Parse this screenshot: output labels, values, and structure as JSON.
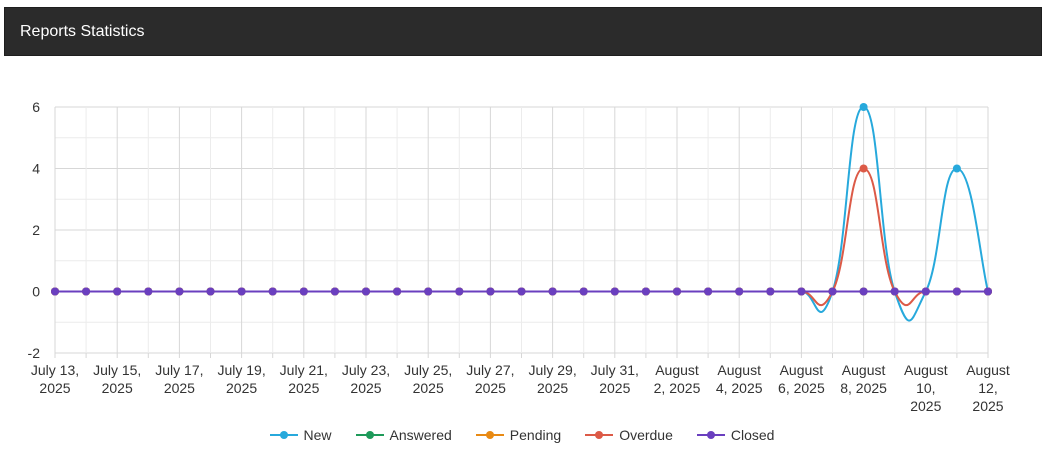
{
  "panel": {
    "title": "Reports Statistics"
  },
  "colors": {
    "header_bg": "#2b2b2b",
    "grid": "#d7d7d7",
    "grid_minor": "#ececec",
    "axis_text": "#333333"
  },
  "chart_data": {
    "type": "line",
    "smooth": true,
    "grid": true,
    "legend_position": "bottom-center",
    "ylim": [
      -2,
      6
    ],
    "yticks": [
      -2,
      0,
      2,
      4,
      6
    ],
    "x": [
      "July 13, 2025",
      "July 14, 2025",
      "July 15, 2025",
      "July 16, 2025",
      "July 17, 2025",
      "July 18, 2025",
      "July 19, 2025",
      "July 20, 2025",
      "July 21, 2025",
      "July 22, 2025",
      "July 23, 2025",
      "July 24, 2025",
      "July 25, 2025",
      "July 26, 2025",
      "July 27, 2025",
      "July 28, 2025",
      "July 29, 2025",
      "July 30, 2025",
      "July 31, 2025",
      "August 1, 2025",
      "August 2, 2025",
      "August 3, 2025",
      "August 4, 2025",
      "August 5, 2025",
      "August 6, 2025",
      "August 7, 2025",
      "August 8, 2025",
      "August 9, 2025",
      "August 10, 2025",
      "August 11, 2025",
      "August 12, 2025"
    ],
    "xtick_labels": [
      [
        "July 13,",
        "2025"
      ],
      [
        "July 15,",
        "2025"
      ],
      [
        "July 17,",
        "2025"
      ],
      [
        "July 19,",
        "2025"
      ],
      [
        "July 21,",
        "2025"
      ],
      [
        "July 23,",
        "2025"
      ],
      [
        "July 25,",
        "2025"
      ],
      [
        "July 27,",
        "2025"
      ],
      [
        "July 29,",
        "2025"
      ],
      [
        "July 31,",
        "2025"
      ],
      [
        "August",
        "2, 2025"
      ],
      [
        "August",
        "4, 2025"
      ],
      [
        "August",
        "6, 2025"
      ],
      [
        "August",
        "8, 2025"
      ],
      [
        "August",
        "10,",
        "2025"
      ],
      [
        "August",
        "12,",
        "2025"
      ]
    ],
    "series": [
      {
        "name": "New",
        "color": "#27a9dc",
        "values": [
          0,
          0,
          0,
          0,
          0,
          0,
          0,
          0,
          0,
          0,
          0,
          0,
          0,
          0,
          0,
          0,
          0,
          0,
          0,
          0,
          0,
          0,
          0,
          0,
          0,
          0,
          6,
          0,
          0,
          4,
          0
        ]
      },
      {
        "name": "Answered",
        "color": "#1e9a5a",
        "values": [
          0,
          0,
          0,
          0,
          0,
          0,
          0,
          0,
          0,
          0,
          0,
          0,
          0,
          0,
          0,
          0,
          0,
          0,
          0,
          0,
          0,
          0,
          0,
          0,
          0,
          0,
          0,
          0,
          0,
          0,
          0
        ]
      },
      {
        "name": "Pending",
        "color": "#e88a14",
        "values": [
          0,
          0,
          0,
          0,
          0,
          0,
          0,
          0,
          0,
          0,
          0,
          0,
          0,
          0,
          0,
          0,
          0,
          0,
          0,
          0,
          0,
          0,
          0,
          0,
          0,
          0,
          0,
          0,
          0,
          0,
          0
        ]
      },
      {
        "name": "Overdue",
        "color": "#dc5a47",
        "values": [
          0,
          0,
          0,
          0,
          0,
          0,
          0,
          0,
          0,
          0,
          0,
          0,
          0,
          0,
          0,
          0,
          0,
          0,
          0,
          0,
          0,
          0,
          0,
          0,
          0,
          0,
          4,
          0,
          0,
          0,
          0
        ]
      },
      {
        "name": "Closed",
        "color": "#6a3fbf",
        "values": [
          0,
          0,
          0,
          0,
          0,
          0,
          0,
          0,
          0,
          0,
          0,
          0,
          0,
          0,
          0,
          0,
          0,
          0,
          0,
          0,
          0,
          0,
          0,
          0,
          0,
          0,
          0,
          0,
          0,
          0,
          0
        ]
      }
    ]
  }
}
